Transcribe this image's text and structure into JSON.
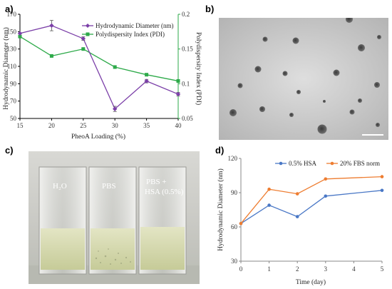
{
  "panels": {
    "a": "a)",
    "b": "b)",
    "c": "c)",
    "d": "d)"
  },
  "chart_data": [
    {
      "type": "line",
      "panel": "a",
      "xlabel": "PheoA Loading (%)",
      "ylabel": "Hydrodynamic Diameter (nm)",
      "y2label": "Polydispersity Index (PDI)",
      "x": [
        15,
        20,
        25,
        30,
        35,
        40
      ],
      "xlim": [
        15,
        40
      ],
      "xticks": [
        15,
        20,
        25,
        30,
        35,
        40
      ],
      "ylim": [
        50,
        170
      ],
      "yticks": [
        50,
        70,
        90,
        110,
        130,
        150,
        170
      ],
      "y2lim": [
        0.05,
        0.2
      ],
      "y2ticks": [
        0.05,
        0.1,
        0.15,
        0.2
      ],
      "y2ticklabels": [
        "0.05",
        "0.1",
        "0.15",
        "0.2"
      ],
      "legend_position": "top-right",
      "grid": false,
      "series": [
        {
          "name": "Hydrodynamic Diameter (nm)",
          "axis": "left",
          "color": "#7b3fa8",
          "marker": "diamond",
          "values": [
            148,
            157,
            142,
            61,
            93,
            78
          ],
          "error": [
            0,
            6,
            2,
            3,
            2,
            2
          ]
        },
        {
          "name": "Polydispersity Index (PDI)",
          "axis": "right",
          "color": "#2eaa4a",
          "marker": "square",
          "values": [
            0.168,
            0.14,
            0.15,
            0.124,
            0.113,
            0.104
          ]
        }
      ]
    },
    {
      "type": "line",
      "panel": "d",
      "xlabel": "Time (day)",
      "ylabel": "Hydrodynamic Diameter (nm)",
      "x": [
        0,
        1,
        2,
        3,
        5
      ],
      "xlim": [
        0,
        5
      ],
      "xticks": [
        0,
        1,
        2,
        3,
        4,
        5
      ],
      "ylim": [
        30,
        120
      ],
      "yticks": [
        30,
        60,
        90,
        120
      ],
      "legend_position": "top",
      "grid": false,
      "series": [
        {
          "name": "0.5% HSA",
          "color": "#4a78c6",
          "marker": "circle",
          "values": [
            63,
            79,
            69,
            87,
            92
          ]
        },
        {
          "name": "20% FBS norm",
          "color": "#ee7d31",
          "marker": "circle",
          "values": [
            63,
            93,
            89,
            102,
            104
          ]
        }
      ]
    }
  ],
  "photo": {
    "labels": [
      "H₂O",
      "PBS",
      "PBS +",
      "HSA (0.5%)"
    ]
  }
}
